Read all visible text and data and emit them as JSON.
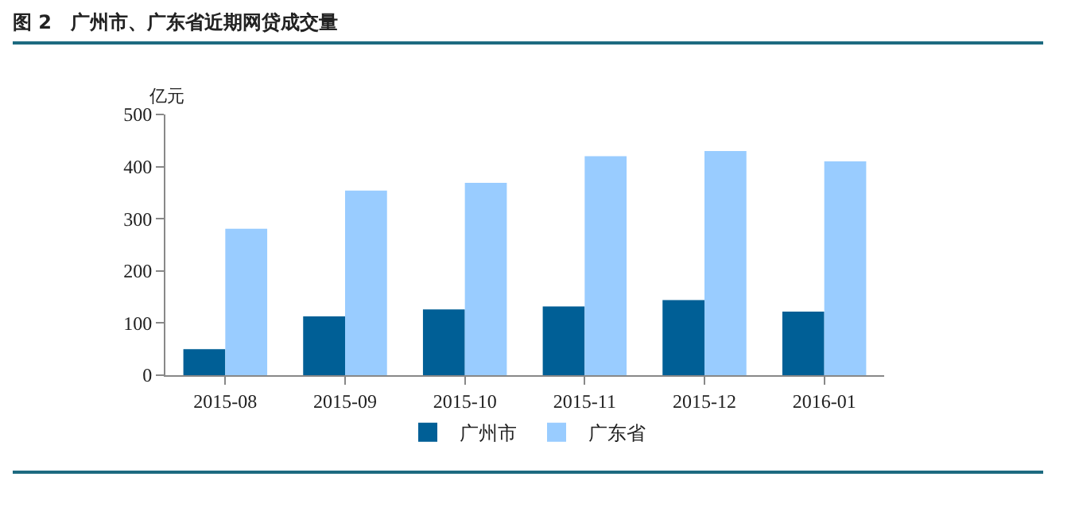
{
  "chart_data": {
    "type": "bar",
    "title": "图 2　广州市、广东省近期网贷成交量",
    "ylabel": "亿元",
    "categories": [
      "2015-08",
      "2015-09",
      "2015-10",
      "2015-11",
      "2015-12",
      "2016-01"
    ],
    "series": [
      {
        "name": "广州市",
        "color": "#005f96",
        "values": [
          50,
          113,
          126,
          132,
          144,
          122
        ]
      },
      {
        "name": "广东省",
        "color": "#99ccff",
        "values": [
          281,
          354,
          369,
          420,
          430,
          410
        ]
      }
    ],
    "ylim": [
      0,
      500
    ],
    "yticks": [
      0,
      100,
      200,
      300,
      400,
      500
    ],
    "grid": false,
    "legend": "bottom"
  }
}
